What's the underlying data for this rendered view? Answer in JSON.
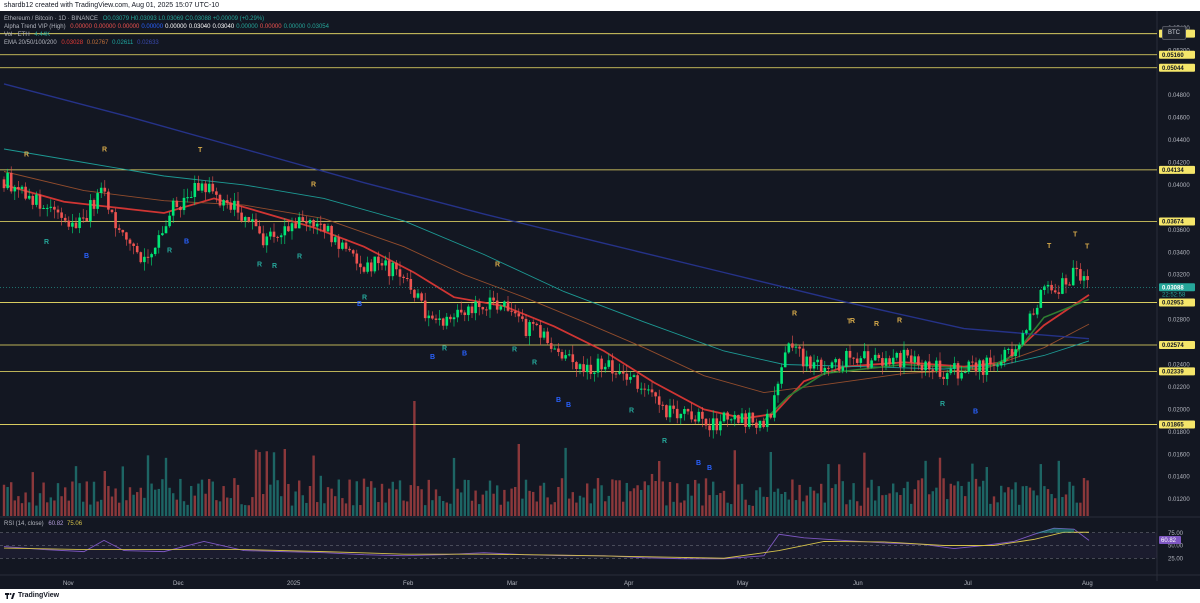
{
  "header": {
    "credit": "shardb12 created with TradingView.com, Aug 01, 2025 15:07 UTC-10"
  },
  "footer": {
    "brand": "TradingView"
  },
  "legend": {
    "symbol": "Ethereum / Bitcoin · 1D · BINANCE",
    "ohlc": "O0.03079 H0.03093 L0.03069 C0.03088 +0.00009 (+0.29%)",
    "alpha_label": "Alpha Trend VIP (High)",
    "alpha_values": [
      "0.00000",
      "0.00000",
      "0.00000",
      "0.00000",
      "0.00000",
      "0.03040",
      "0.03040",
      "0.00000",
      "0.00000",
      "0.00000",
      "0.03054"
    ],
    "vol_label": "Vol · ETH",
    "vol_value": "4.44K",
    "ema_label": "EMA 20/50/100/200",
    "ema_values": [
      "0.03028",
      "0.02767",
      "0.02611",
      "0.02633"
    ],
    "rsi_label": "RSI (14, close)",
    "rsi_values": [
      "60.82",
      "75.06"
    ]
  },
  "colors": {
    "background": "#131722",
    "up": "#26a69a",
    "up_bright": "#00e676",
    "down": "#ef5350",
    "level_line": "#f5e66a",
    "level_label_bg": "#f5e66a",
    "ema20": "#e53935",
    "ema50": "#a0522d",
    "ema100": "#1ea7a0",
    "ema200": "#283593",
    "rsi": "#7e57c2",
    "rsi_ma": "#d4c14a",
    "marker_R": "#26a69a",
    "marker_B": "#2962ff",
    "marker_top": "#d4a84a"
  },
  "scale_button": "BTC",
  "chart_data": {
    "type": "candlestick",
    "title": "Ethereum / Bitcoin · 1D · BINANCE",
    "ylim": [
      0.0105,
      0.0555
    ],
    "y_ticks": [
      "0.05400",
      "0.05200",
      "0.04800",
      "0.04600",
      "0.04400",
      "0.04200",
      "0.04000",
      "0.03600",
      "0.03400",
      "0.03200",
      "0.02800",
      "0.02400",
      "0.02200",
      "0.02000",
      "0.01800",
      "0.01600",
      "0.01400",
      "0.01200"
    ],
    "x_ticks": [
      "Nov",
      "Dec",
      "2025",
      "Feb",
      "Mar",
      "Apr",
      "May",
      "Jun",
      "Jul",
      "Aug"
    ],
    "levels": [
      "0.05348",
      "0.05160",
      "0.05044",
      "0.04134",
      "0.03674",
      "0.02953",
      "0.02574",
      "0.02339",
      "0.01865"
    ],
    "last_price": "0.03088",
    "last_price_countdown": "22:52:58",
    "price_path": [
      [
        0,
        0.0405
      ],
      [
        20,
        0.0395
      ],
      [
        40,
        0.0378
      ],
      [
        55,
        0.0372
      ],
      [
        70,
        0.0362
      ],
      [
        85,
        0.0378
      ],
      [
        100,
        0.0398
      ],
      [
        110,
        0.0365
      ],
      [
        125,
        0.035
      ],
      [
        140,
        0.0335
      ],
      [
        155,
        0.035
      ],
      [
        170,
        0.038
      ],
      [
        185,
        0.039
      ],
      [
        200,
        0.04
      ],
      [
        215,
        0.0385
      ],
      [
        230,
        0.038
      ],
      [
        245,
        0.0368
      ],
      [
        260,
        0.0352
      ],
      [
        275,
        0.0358
      ],
      [
        290,
        0.0362
      ],
      [
        305,
        0.037
      ],
      [
        315,
        0.0362
      ],
      [
        330,
        0.0352
      ],
      [
        345,
        0.034
      ],
      [
        360,
        0.0328
      ],
      [
        375,
        0.033
      ],
      [
        390,
        0.0322
      ],
      [
        400,
        0.0318
      ],
      [
        410,
        0.0305
      ],
      [
        420,
        0.0288
      ],
      [
        435,
        0.0282
      ],
      [
        450,
        0.0284
      ],
      [
        465,
        0.029
      ],
      [
        480,
        0.0292
      ],
      [
        495,
        0.0296
      ],
      [
        505,
        0.0288
      ],
      [
        515,
        0.0275
      ],
      [
        530,
        0.027
      ],
      [
        545,
        0.0262
      ],
      [
        555,
        0.0245
      ],
      [
        570,
        0.024
      ],
      [
        585,
        0.0238
      ],
      [
        600,
        0.024
      ],
      [
        615,
        0.0236
      ],
      [
        630,
        0.0225
      ],
      [
        645,
        0.0212
      ],
      [
        660,
        0.02
      ],
      [
        675,
        0.0196
      ],
      [
        690,
        0.0192
      ],
      [
        705,
        0.0186
      ],
      [
        720,
        0.019
      ],
      [
        740,
        0.019
      ],
      [
        760,
        0.0192
      ],
      [
        768,
        0.02
      ],
      [
        775,
        0.0232
      ],
      [
        785,
        0.0255
      ],
      [
        795,
        0.0248
      ],
      [
        810,
        0.0242
      ],
      [
        825,
        0.0238
      ],
      [
        840,
        0.0244
      ],
      [
        855,
        0.0246
      ],
      [
        870,
        0.0242
      ],
      [
        885,
        0.0244
      ],
      [
        900,
        0.0246
      ],
      [
        915,
        0.024
      ],
      [
        930,
        0.0238
      ],
      [
        940,
        0.0232
      ],
      [
        955,
        0.0234
      ],
      [
        970,
        0.0236
      ],
      [
        985,
        0.024
      ],
      [
        1000,
        0.0245
      ],
      [
        1015,
        0.0258
      ],
      [
        1025,
        0.028
      ],
      [
        1035,
        0.03
      ],
      [
        1045,
        0.0312
      ],
      [
        1055,
        0.0305
      ],
      [
        1065,
        0.0318
      ],
      [
        1075,
        0.0325
      ],
      [
        1085,
        0.0308
      ]
    ],
    "ema_lines": [
      {
        "name": "EMA 20",
        "points": [
          [
            0,
            0.04
          ],
          [
            60,
            0.0385
          ],
          [
            110,
            0.038
          ],
          [
            160,
            0.0375
          ],
          [
            210,
            0.0388
          ],
          [
            260,
            0.0375
          ],
          [
            310,
            0.0362
          ],
          [
            360,
            0.0345
          ],
          [
            410,
            0.0322
          ],
          [
            450,
            0.03
          ],
          [
            500,
            0.0292
          ],
          [
            550,
            0.0274
          ],
          [
            600,
            0.0252
          ],
          [
            650,
            0.0224
          ],
          [
            700,
            0.02
          ],
          [
            740,
            0.0192
          ],
          [
            770,
            0.0196
          ],
          [
            800,
            0.0225
          ],
          [
            840,
            0.0238
          ],
          [
            900,
            0.0242
          ],
          [
            960,
            0.0238
          ],
          [
            1000,
            0.0242
          ],
          [
            1040,
            0.0275
          ],
          [
            1085,
            0.0302
          ]
        ]
      },
      {
        "name": "EMA 50",
        "points": [
          [
            0,
            0.0412
          ],
          [
            80,
            0.0395
          ],
          [
            160,
            0.0386
          ],
          [
            240,
            0.0382
          ],
          [
            320,
            0.037
          ],
          [
            400,
            0.0345
          ],
          [
            460,
            0.032
          ],
          [
            520,
            0.03
          ],
          [
            580,
            0.0278
          ],
          [
            640,
            0.0255
          ],
          [
            700,
            0.023
          ],
          [
            760,
            0.0215
          ],
          [
            820,
            0.0222
          ],
          [
            900,
            0.0232
          ],
          [
            980,
            0.0236
          ],
          [
            1040,
            0.0255
          ],
          [
            1085,
            0.0276
          ]
        ]
      },
      {
        "name": "EMA 100",
        "points": [
          [
            0,
            0.0432
          ],
          [
            80,
            0.042
          ],
          [
            160,
            0.0408
          ],
          [
            240,
            0.04
          ],
          [
            320,
            0.0388
          ],
          [
            400,
            0.0368
          ],
          [
            480,
            0.0338
          ],
          [
            560,
            0.0305
          ],
          [
            640,
            0.0278
          ],
          [
            720,
            0.0252
          ],
          [
            780,
            0.024
          ],
          [
            860,
            0.0238
          ],
          [
            940,
            0.0236
          ],
          [
            1000,
            0.024
          ],
          [
            1040,
            0.0248
          ],
          [
            1085,
            0.0261
          ]
        ]
      },
      {
        "name": "EMA 200",
        "points": [
          [
            0,
            0.049
          ],
          [
            120,
            0.0462
          ],
          [
            240,
            0.0432
          ],
          [
            360,
            0.0402
          ],
          [
            480,
            0.0374
          ],
          [
            600,
            0.0348
          ],
          [
            720,
            0.0322
          ],
          [
            840,
            0.0296
          ],
          [
            960,
            0.0272
          ],
          [
            1085,
            0.0263
          ]
        ]
      }
    ],
    "markers": [
      {
        "x": 22,
        "label": "R",
        "kind": "top"
      },
      {
        "x": 100,
        "label": "R",
        "kind": "top"
      },
      {
        "x": 196,
        "label": "T",
        "kind": "top"
      },
      {
        "x": 309,
        "label": "R",
        "kind": "top"
      },
      {
        "x": 493,
        "label": "R",
        "kind": "top"
      },
      {
        "x": 790,
        "label": "R",
        "kind": "top"
      },
      {
        "x": 848,
        "label": "R",
        "kind": "top"
      },
      {
        "x": 872,
        "label": "R",
        "kind": "top"
      },
      {
        "x": 895,
        "label": "R",
        "kind": "top"
      },
      {
        "x": 845,
        "label": "T",
        "kind": "top"
      },
      {
        "x": 1045,
        "label": "T",
        "kind": "top"
      },
      {
        "x": 1071,
        "label": "T",
        "kind": "top"
      },
      {
        "x": 1083,
        "label": "T",
        "kind": "top"
      },
      {
        "x": 42,
        "label": "R",
        "kind": "R"
      },
      {
        "x": 165,
        "label": "R",
        "kind": "R"
      },
      {
        "x": 255,
        "label": "R",
        "kind": "R"
      },
      {
        "x": 270,
        "label": "R",
        "kind": "R"
      },
      {
        "x": 295,
        "label": "R",
        "kind": "R"
      },
      {
        "x": 360,
        "label": "R",
        "kind": "R"
      },
      {
        "x": 440,
        "label": "R",
        "kind": "R"
      },
      {
        "x": 510,
        "label": "R",
        "kind": "R"
      },
      {
        "x": 530,
        "label": "R",
        "kind": "R"
      },
      {
        "x": 627,
        "label": "R",
        "kind": "R"
      },
      {
        "x": 660,
        "label": "R",
        "kind": "R"
      },
      {
        "x": 938,
        "label": "R",
        "kind": "R"
      },
      {
        "x": 82,
        "label": "B",
        "kind": "B"
      },
      {
        "x": 182,
        "label": "B",
        "kind": "B"
      },
      {
        "x": 355,
        "label": "B",
        "kind": "B"
      },
      {
        "x": 428,
        "label": "B",
        "kind": "B"
      },
      {
        "x": 460,
        "label": "B",
        "kind": "B"
      },
      {
        "x": 554,
        "label": "B",
        "kind": "B"
      },
      {
        "x": 564,
        "label": "B",
        "kind": "B"
      },
      {
        "x": 694,
        "label": "B",
        "kind": "B"
      },
      {
        "x": 705,
        "label": "B",
        "kind": "B"
      },
      {
        "x": 971,
        "label": "B",
        "kind": "B"
      }
    ],
    "rsi_levels": [
      "75.00",
      "50.00",
      "25.00"
    ],
    "rsi_path": [
      [
        0,
        48
      ],
      [
        40,
        42
      ],
      [
        80,
        38
      ],
      [
        100,
        60
      ],
      [
        120,
        40
      ],
      [
        160,
        38
      ],
      [
        200,
        58
      ],
      [
        240,
        40
      ],
      [
        280,
        38
      ],
      [
        320,
        36
      ],
      [
        360,
        32
      ],
      [
        400,
        30
      ],
      [
        440,
        32
      ],
      [
        480,
        36
      ],
      [
        520,
        32
      ],
      [
        560,
        30
      ],
      [
        600,
        30
      ],
      [
        640,
        26
      ],
      [
        680,
        24
      ],
      [
        720,
        24
      ],
      [
        760,
        30
      ],
      [
        775,
        72
      ],
      [
        800,
        65
      ],
      [
        840,
        60
      ],
      [
        880,
        55
      ],
      [
        920,
        52
      ],
      [
        950,
        44
      ],
      [
        980,
        50
      ],
      [
        1010,
        58
      ],
      [
        1030,
        72
      ],
      [
        1050,
        84
      ],
      [
        1070,
        82
      ],
      [
        1085,
        60
      ]
    ],
    "rsi_ma_path": [
      [
        0,
        45
      ],
      [
        80,
        42
      ],
      [
        160,
        42
      ],
      [
        240,
        42
      ],
      [
        320,
        38
      ],
      [
        400,
        33
      ],
      [
        480,
        33
      ],
      [
        560,
        31
      ],
      [
        640,
        28
      ],
      [
        720,
        25
      ],
      [
        775,
        40
      ],
      [
        820,
        58
      ],
      [
        880,
        57
      ],
      [
        940,
        50
      ],
      [
        990,
        50
      ],
      [
        1030,
        62
      ],
      [
        1060,
        76
      ],
      [
        1085,
        76
      ]
    ]
  }
}
